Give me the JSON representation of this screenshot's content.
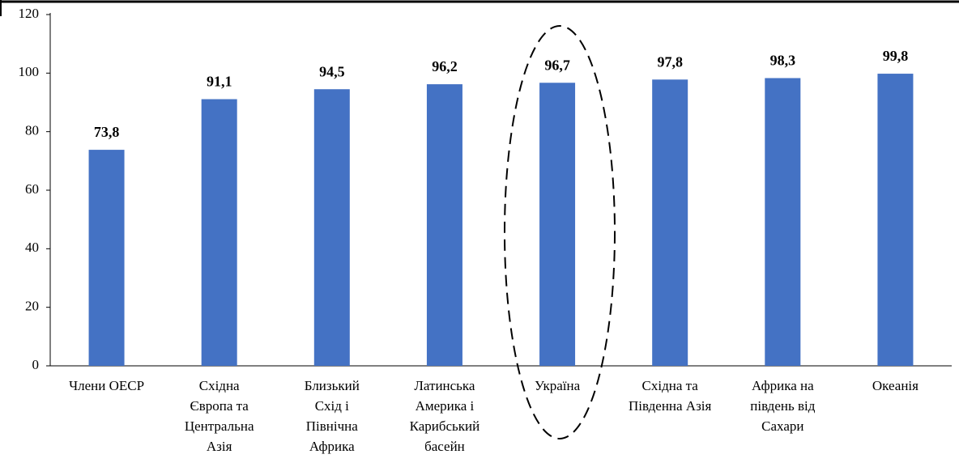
{
  "chart_data": {
    "type": "bar",
    "categories": [
      "Члени ОЕСР",
      "Східна\nЄвропа та\nЦентральна\nАзія",
      "Близький\nСхід і\nПівнічна\nАфрика",
      "Латинська\nАмерика і\nКарибський\nбасейн",
      "Україна",
      "Східна та\nПівденна Азія",
      "Африка на\nпівдень від\nСахари",
      "Океанія"
    ],
    "values": [
      73.8,
      91.1,
      94.5,
      96.2,
      96.7,
      97.8,
      98.3,
      99.8
    ],
    "value_labels": [
      "73,8",
      "91,1",
      "94,5",
      "96,2",
      "96,7",
      "97,8",
      "98,3",
      "99,8"
    ],
    "color": "#4472c4",
    "ylim": [
      0,
      120
    ],
    "yticks": [
      0,
      20,
      40,
      60,
      80,
      100,
      120
    ]
  }
}
